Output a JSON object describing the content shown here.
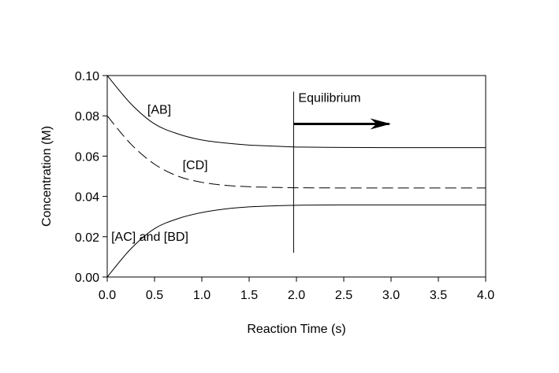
{
  "chart_data": {
    "type": "line",
    "xlabel": "Reaction Time (s)",
    "ylabel": "Concentration (M)",
    "xlim": [
      0,
      4
    ],
    "ylim": [
      0,
      0.1
    ],
    "x_ticks": [
      0,
      0.5,
      1,
      1.5,
      2,
      2.5,
      3,
      3.5,
      4
    ],
    "y_ticks": [
      0,
      0.02,
      0.04,
      0.06,
      0.08,
      0.1
    ],
    "x_tick_labels": [
      "0.0",
      "0.5",
      "1.0",
      "1.5",
      "2.0",
      "2.5",
      "3.0",
      "3.5",
      "4.0"
    ],
    "y_tick_labels": [
      "0.00",
      "0.02",
      "0.04",
      "0.06",
      "0.08",
      "0.10"
    ],
    "grid": false,
    "legend": "none",
    "series": [
      {
        "name": "[AB]",
        "style": "solid",
        "color": "#000000",
        "x": [
          0,
          0.25,
          0.5,
          0.75,
          1.0,
          1.25,
          1.5,
          1.75,
          2.0,
          2.5,
          3.0,
          3.5,
          4.0
        ],
        "y": [
          0.1,
          0.086,
          0.076,
          0.071,
          0.068,
          0.0665,
          0.0655,
          0.065,
          0.0645,
          0.0643,
          0.0642,
          0.0642,
          0.0642
        ]
      },
      {
        "name": "[CD]",
        "style": "dashed",
        "color": "#000000",
        "x": [
          0,
          0.25,
          0.5,
          0.75,
          1.0,
          1.25,
          1.5,
          1.75,
          2.0,
          2.5,
          3.0,
          3.5,
          4.0
        ],
        "y": [
          0.08,
          0.066,
          0.056,
          0.05,
          0.047,
          0.0455,
          0.0448,
          0.0445,
          0.0443,
          0.0442,
          0.0442,
          0.0442,
          0.0442
        ]
      },
      {
        "name": "[AC] and [BD]",
        "style": "solid",
        "color": "#000000",
        "x": [
          0,
          0.25,
          0.5,
          0.75,
          1.0,
          1.25,
          1.5,
          1.75,
          2.0,
          2.5,
          3.0,
          3.5,
          4.0
        ],
        "y": [
          0.0,
          0.014,
          0.024,
          0.029,
          0.032,
          0.0338,
          0.0348,
          0.0353,
          0.0356,
          0.0358,
          0.0358,
          0.0358,
          0.0358
        ]
      }
    ],
    "annotations": {
      "series_labels": [
        {
          "text": "[AB]",
          "x": 0.55,
          "y": 0.081
        },
        {
          "text": "[CD]",
          "x": 0.93,
          "y": 0.0535
        },
        {
          "text": "[AC] and [BD]",
          "x": 0.45,
          "y": 0.018
        }
      ],
      "equilibrium_line": {
        "x": 1.97,
        "y_from": 0.012,
        "y_to": 0.092
      },
      "equilibrium_arrow": {
        "x_from": 1.97,
        "x_to": 2.98,
        "y": 0.076
      },
      "equilibrium_label": {
        "text": "Equilibrium",
        "x": 2.35,
        "y": 0.087
      }
    }
  }
}
